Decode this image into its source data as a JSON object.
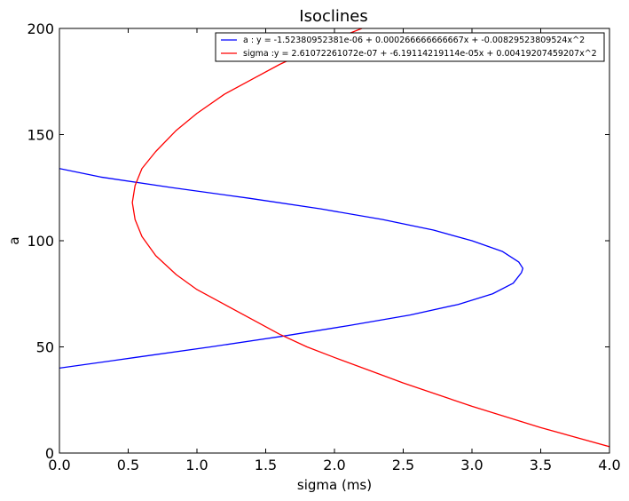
{
  "chart_data": {
    "type": "line",
    "title": "Isoclines",
    "xlabel": "sigma (ms)",
    "ylabel": "a",
    "xlim": [
      0.0,
      4.0
    ],
    "ylim": [
      0,
      200
    ],
    "x_ticks": [
      "0.0",
      "0.5",
      "1.0",
      "1.5",
      "2.0",
      "2.5",
      "3.0",
      "3.5",
      "4.0"
    ],
    "y_ticks": [
      "0",
      "50",
      "100",
      "150",
      "200"
    ],
    "grid": false,
    "legend_position": "top-right",
    "series": [
      {
        "name": "a : y = -1.52380952381e-06 + 0.000266666666667x + -0.00829523809524x^2",
        "color": "#0000ff",
        "orientation": "x_of_a",
        "points": [
          {
            "a": 40,
            "sigma": 0.0
          },
          {
            "a": 45,
            "sigma": 0.55
          },
          {
            "a": 50,
            "sigma": 1.1
          },
          {
            "a": 55,
            "sigma": 1.62
          },
          {
            "a": 60,
            "sigma": 2.1
          },
          {
            "a": 65,
            "sigma": 2.55
          },
          {
            "a": 70,
            "sigma": 2.9
          },
          {
            "a": 75,
            "sigma": 3.15
          },
          {
            "a": 80,
            "sigma": 3.3
          },
          {
            "a": 85,
            "sigma": 3.36
          },
          {
            "a": 87,
            "sigma": 3.37
          },
          {
            "a": 90,
            "sigma": 3.34
          },
          {
            "a": 95,
            "sigma": 3.22
          },
          {
            "a": 100,
            "sigma": 3.0
          },
          {
            "a": 105,
            "sigma": 2.72
          },
          {
            "a": 110,
            "sigma": 2.35
          },
          {
            "a": 115,
            "sigma": 1.9
          },
          {
            "a": 120,
            "sigma": 1.38
          },
          {
            "a": 125,
            "sigma": 0.82
          },
          {
            "a": 130,
            "sigma": 0.3
          },
          {
            "a": 134,
            "sigma": 0.0
          }
        ]
      },
      {
        "name": "sigma :y = 2.61072261072e-07 + -6.19114219114e-05x + 0.00419207459207x^2",
        "color": "#ff0000",
        "orientation": "a_of_sigma",
        "points": [
          {
            "sigma": 0.53,
            "a": 118
          },
          {
            "sigma": 0.55,
            "a": 110
          },
          {
            "sigma": 0.6,
            "a": 102
          },
          {
            "sigma": 0.7,
            "a": 93
          },
          {
            "sigma": 0.85,
            "a": 84
          },
          {
            "sigma": 1.0,
            "a": 77
          },
          {
            "sigma": 1.2,
            "a": 70
          },
          {
            "sigma": 1.4,
            "a": 63
          },
          {
            "sigma": 1.6,
            "a": 56
          },
          {
            "sigma": 1.8,
            "a": 50
          },
          {
            "sigma": 2.0,
            "a": 45
          },
          {
            "sigma": 2.25,
            "a": 39
          },
          {
            "sigma": 2.5,
            "a": 33
          },
          {
            "sigma": 2.75,
            "a": 27.5
          },
          {
            "sigma": 3.0,
            "a": 22
          },
          {
            "sigma": 3.25,
            "a": 17
          },
          {
            "sigma": 3.5,
            "a": 12
          },
          {
            "sigma": 3.75,
            "a": 7.5
          },
          {
            "sigma": 4.0,
            "a": 3
          },
          {
            "sigma": 0.55,
            "a": 126
          },
          {
            "sigma": 0.6,
            "a": 134
          },
          {
            "sigma": 0.7,
            "a": 142
          },
          {
            "sigma": 0.85,
            "a": 152
          },
          {
            "sigma": 1.0,
            "a": 160
          },
          {
            "sigma": 1.2,
            "a": 169
          },
          {
            "sigma": 1.4,
            "a": 176
          },
          {
            "sigma": 1.6,
            "a": 183
          },
          {
            "sigma": 1.8,
            "a": 189
          },
          {
            "sigma": 2.0,
            "a": 195
          },
          {
            "sigma": 2.2,
            "a": 200
          }
        ]
      }
    ]
  }
}
